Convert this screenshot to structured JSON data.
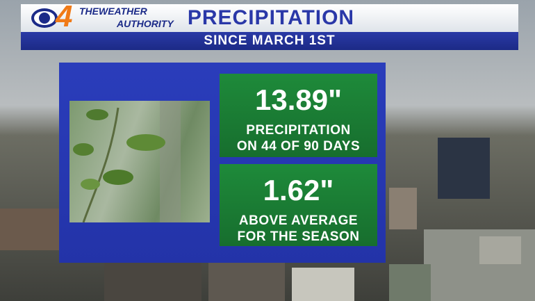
{
  "header": {
    "logo_number": "4",
    "logo_line1": "THEWEATHER",
    "logo_line2": "AUTHORITY",
    "title": "PRECIPITATION",
    "subtitle": "SINCE MARCH 1ST"
  },
  "stats": [
    {
      "value": "13.89\"",
      "line1": "PRECIPITATION",
      "line2": "ON 44 OF 90 DAYS"
    },
    {
      "value": "1.62\"",
      "line1": "ABOVE AVERAGE",
      "line2": "FOR THE SEASON"
    }
  ]
}
